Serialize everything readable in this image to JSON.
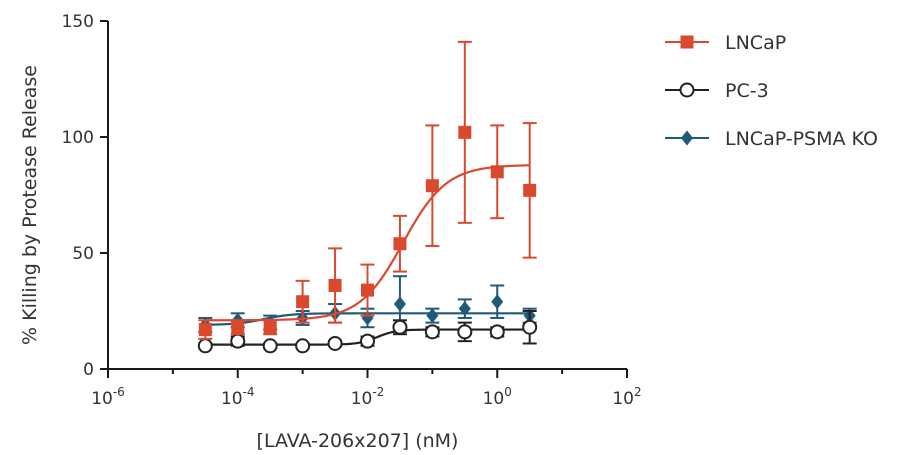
{
  "chart_data": {
    "type": "scatter",
    "xlabel": "[LAVA-206x207] (nM)",
    "ylabel": "% Killing by Protease Release",
    "x_scale": "log10",
    "xlim_exponent": [
      -6,
      2
    ],
    "x_ticks": [
      {
        "base": "10",
        "exp": "-6",
        "value": -6
      },
      {
        "base": "10",
        "exp": "-4",
        "value": -4
      },
      {
        "base": "10",
        "exp": "-2",
        "value": -2
      },
      {
        "base": "10",
        "exp": "0",
        "value": 0
      },
      {
        "base": "10",
        "exp": "2",
        "value": 2
      }
    ],
    "ylim": [
      0,
      150
    ],
    "y_ticks": [
      "0",
      "50",
      "100",
      "150"
    ],
    "grid": false,
    "legend_position": "right",
    "x_exponents": [
      -4.5,
      -4,
      -3.5,
      -3,
      -2.5,
      -2,
      -1.5,
      -1,
      -0.5,
      0,
      0.5
    ],
    "series": [
      {
        "name": "LNCaP",
        "color": "#d9492e",
        "marker": "filled-square",
        "values": [
          17,
          18,
          18,
          29,
          36,
          34,
          54,
          79,
          102,
          85,
          77
        ],
        "errors": [
          4,
          3,
          3,
          9,
          16,
          11,
          12,
          26,
          39,
          20,
          29
        ],
        "fit": {
          "bottom": 21,
          "top": 88,
          "log_ec50": -1.45,
          "hill": 1.3
        }
      },
      {
        "name": "PC-3",
        "color": "#222222",
        "marker": "open-circle",
        "values": [
          10,
          12,
          10,
          10,
          11,
          12,
          18,
          16,
          16,
          16,
          18
        ],
        "errors": [
          1,
          2,
          1,
          1,
          1,
          2,
          3,
          2,
          4,
          2,
          7
        ],
        "fit": {
          "bottom": 10.5,
          "top": 17,
          "log_ec50": -1.85,
          "hill": 3
        }
      },
      {
        "name": "LNCaP-PSMA KO",
        "color": "#1f5a7a",
        "marker": "filled-diamond",
        "values": [
          19,
          21,
          20,
          22,
          24,
          22,
          28,
          23,
          26,
          29,
          23
        ],
        "errors": [
          3,
          3,
          3,
          3,
          4,
          4,
          12,
          3,
          4,
          7,
          3
        ],
        "fit": {
          "bottom": 19,
          "top": 24,
          "log_ec50": -3.6,
          "hill": 2
        }
      }
    ]
  }
}
